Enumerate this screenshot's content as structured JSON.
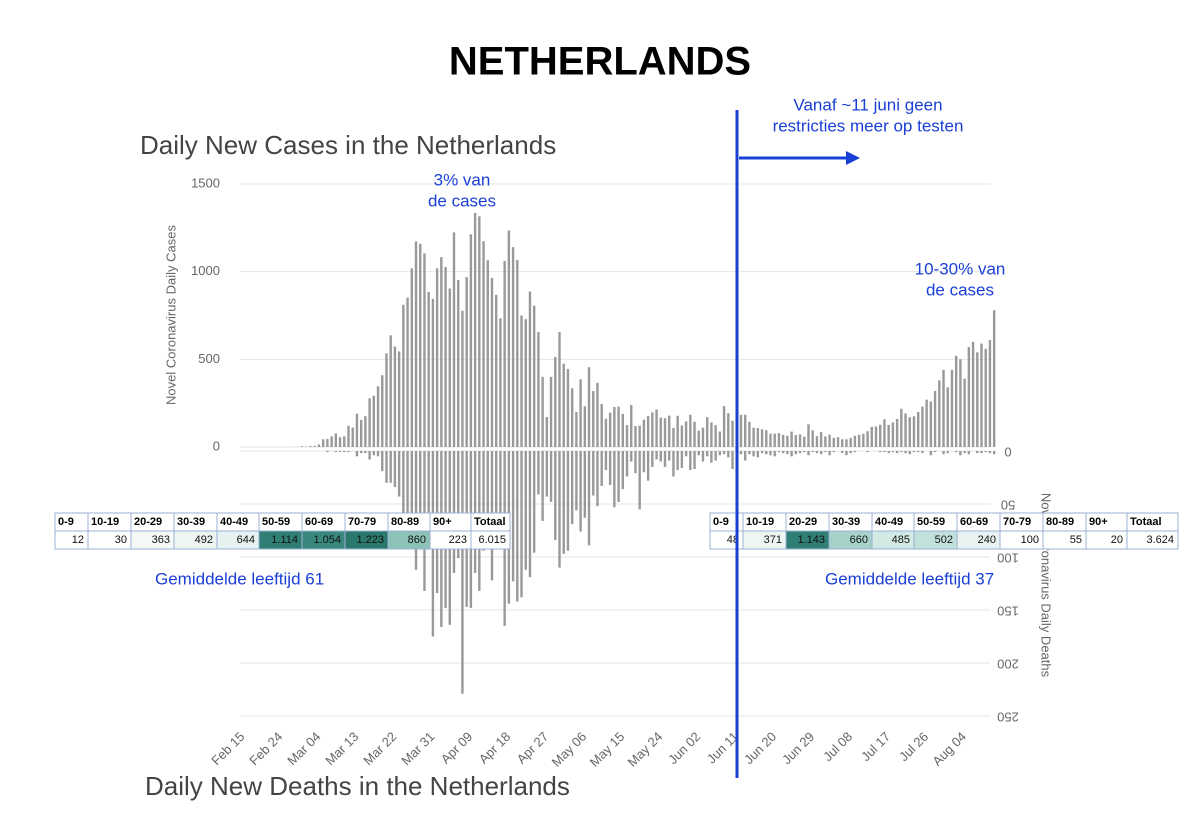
{
  "title": "NETHERLANDS",
  "chart_data": [
    {
      "type": "bar",
      "title": "Daily New Cases in the Netherlands",
      "y_label": "Novel Coronavirus Daily Cases",
      "color": "#999999",
      "ylim": [
        0,
        1500
      ],
      "yticks": [
        0,
        500,
        1000,
        1500
      ],
      "grid": true,
      "categories": [
        "Feb 15",
        null,
        null,
        null,
        null,
        null,
        null,
        null,
        null,
        "Feb 24",
        null,
        null,
        null,
        null,
        null,
        null,
        null,
        null,
        "Mar 04",
        null,
        null,
        null,
        null,
        null,
        null,
        null,
        null,
        "Mar 13",
        null,
        null,
        null,
        null,
        null,
        null,
        null,
        null,
        "Mar 22",
        null,
        null,
        null,
        null,
        null,
        null,
        null,
        null,
        "Mar 31",
        null,
        null,
        null,
        null,
        null,
        null,
        null,
        null,
        "Apr 09",
        null,
        null,
        null,
        null,
        null,
        null,
        null,
        null,
        "Apr 18",
        null,
        null,
        null,
        null,
        null,
        null,
        null,
        null,
        "Apr 27",
        null,
        null,
        null,
        null,
        null,
        null,
        null,
        null,
        "May 06",
        null,
        null,
        null,
        null,
        null,
        null,
        null,
        null,
        "May 15",
        null,
        null,
        null,
        null,
        null,
        null,
        null,
        null,
        "May 24",
        null,
        null,
        null,
        null,
        null,
        null,
        null,
        null,
        "Jun 02",
        null,
        null,
        null,
        null,
        null,
        null,
        null,
        null,
        "Jun 11",
        null,
        null,
        null,
        null,
        null,
        null,
        null,
        null,
        "Jun 20",
        null,
        null,
        null,
        null,
        null,
        null,
        null,
        null,
        "Jun 29",
        null,
        null,
        null,
        null,
        null,
        null,
        null,
        null,
        "Jul 08",
        null,
        null,
        null,
        null,
        null,
        null,
        null,
        null,
        "Jul 17",
        null,
        null,
        null,
        null,
        null,
        null,
        null,
        null,
        "Jul 26",
        null,
        null,
        null,
        null,
        null,
        null,
        null,
        null,
        "Aug 04",
        null,
        null,
        null,
        null,
        null,
        null,
        null
      ],
      "values": [
        0,
        0,
        0,
        0,
        0,
        0,
        0,
        0,
        0,
        0,
        0,
        0,
        1,
        1,
        4,
        3,
        5,
        6,
        14,
        44,
        46,
        60,
        77,
        56,
        61,
        121,
        111,
        190,
        155,
        176,
        278,
        292,
        346,
        409,
        534,
        637,
        573,
        545,
        811,
        852,
        1019,
        1172,
        1159,
        1104,
        884,
        845,
        1019,
        1083,
        1026,
        904,
        1224,
        952,
        777,
        969,
        1213,
        1335,
        1316,
        1174,
        1065,
        964,
        868,
        734,
        1061,
        1235,
        1140,
        1066,
        750,
        729,
        887,
        806,
        655,
        400,
        171,
        400,
        513,
        655,
        475,
        445,
        335,
        199,
        386,
        232,
        455,
        319,
        366,
        245,
        161,
        196,
        228,
        230,
        189,
        125,
        239,
        120,
        122,
        156,
        176,
        197,
        214,
        168,
        164,
        179,
        109,
        178,
        123,
        146,
        184,
        144,
        93,
        110,
        170,
        140,
        124,
        88,
        233,
        193,
        150,
        209,
        184,
        184,
        144,
        110,
        108,
        101,
        96,
        76,
        76,
        79,
        69,
        64,
        88,
        68,
        72,
        59,
        130,
        95,
        62,
        85,
        60,
        70,
        52,
        56,
        44,
        44,
        52,
        64,
        70,
        76,
        90,
        115,
        117,
        127,
        158,
        126,
        140,
        160,
        218,
        191,
        170,
        175,
        200,
        230,
        270,
        260,
        320,
        380,
        440,
        340,
        440,
        520,
        500,
        390,
        570,
        600,
        540,
        590,
        560,
        610,
        780
      ]
    },
    {
      "type": "bar",
      "title": "Daily New Deaths in the Netherlands",
      "y_label": "Novel Coronavirus Daily Deaths",
      "color": "#999999",
      "ylim": [
        0,
        250
      ],
      "yticks": [
        0,
        50,
        100,
        150,
        200,
        250
      ],
      "grid": true,
      "inverted": true,
      "values": [
        0,
        0,
        0,
        0,
        0,
        0,
        0,
        0,
        0,
        0,
        0,
        0,
        0,
        0,
        0,
        0,
        0,
        0,
        0,
        0,
        1,
        0,
        1,
        1,
        1,
        1,
        0,
        5,
        2,
        2,
        8,
        4,
        5,
        19,
        30,
        30,
        34,
        43,
        63,
        80,
        78,
        112,
        93,
        132,
        93,
        175,
        134,
        166,
        148,
        164,
        115,
        101,
        229,
        147,
        148,
        115,
        132,
        94,
        86,
        122,
        67,
        81,
        165,
        144,
        123,
        142,
        138,
        112,
        119,
        96,
        41,
        66,
        43,
        48,
        84,
        110,
        97,
        94,
        69,
        56,
        76,
        63,
        89,
        42,
        52,
        33,
        18,
        32,
        53,
        48,
        36,
        24,
        10,
        21,
        55,
        20,
        28,
        15,
        8,
        10,
        15,
        9,
        24,
        18,
        16,
        5,
        18,
        17,
        4,
        10,
        5,
        11,
        9,
        4,
        3,
        6,
        17,
        6,
        3,
        9,
        3,
        5,
        6,
        2,
        3,
        4,
        5,
        1,
        2,
        3,
        5,
        3,
        2,
        1,
        4,
        1,
        2,
        3,
        1,
        4,
        1,
        0,
        2,
        4,
        2,
        1,
        0,
        0,
        1,
        0,
        0,
        1,
        1,
        2,
        1,
        2,
        1,
        2,
        3,
        1,
        1,
        2,
        0,
        4,
        1,
        0,
        3,
        2,
        0,
        1,
        4,
        2,
        3,
        0,
        2,
        2,
        1,
        2,
        3
      ]
    }
  ],
  "annotations": [
    {
      "lines": [
        "3% van",
        "de cases"
      ]
    },
    {
      "lines": [
        "10-30% van",
        "de cases"
      ]
    },
    {
      "lines": [
        "Vanaf ~11 juni geen",
        "restricties meer op testen"
      ]
    },
    {
      "lines": [
        "Gemiddelde leeftijd 61"
      ]
    },
    {
      "lines": [
        "Gemiddelde leeftijd 37"
      ]
    }
  ],
  "tables": [
    {
      "header": [
        "0-9",
        "10-19",
        "20-29",
        "30-39",
        "40-49",
        "50-59",
        "60-69",
        "70-79",
        "80-89",
        "90+",
        "Totaal"
      ],
      "values": [
        "12",
        "30",
        "363",
        "492",
        "644",
        "1.114",
        "1.054",
        "1.223",
        "860",
        "223",
        "6.015"
      ],
      "shades": [
        "#ffffff",
        "#ffffff",
        "#f4f9f8",
        "#eef6f4",
        "#e6f2ef",
        "#2f7f74",
        "#3a887d",
        "#2a786c",
        "#8cc2b8",
        "#ffffff",
        "#ffffff"
      ]
    },
    {
      "header": [
        "0-9",
        "10-19",
        "20-29",
        "30-39",
        "40-49",
        "50-59",
        "60-69",
        "70-79",
        "80-89",
        "90+",
        "Totaal"
      ],
      "values": [
        "48",
        "371",
        "1.143",
        "660",
        "485",
        "502",
        "240",
        "100",
        "55",
        "20",
        "3.624"
      ],
      "shades": [
        "#ffffff",
        "#eef6f4",
        "#2f7f74",
        "#a6d2c9",
        "#d2e9e4",
        "#c3e1db",
        "#e8f3f1",
        "#ffffff",
        "#ffffff",
        "#ffffff",
        "#ffffff"
      ]
    }
  ]
}
